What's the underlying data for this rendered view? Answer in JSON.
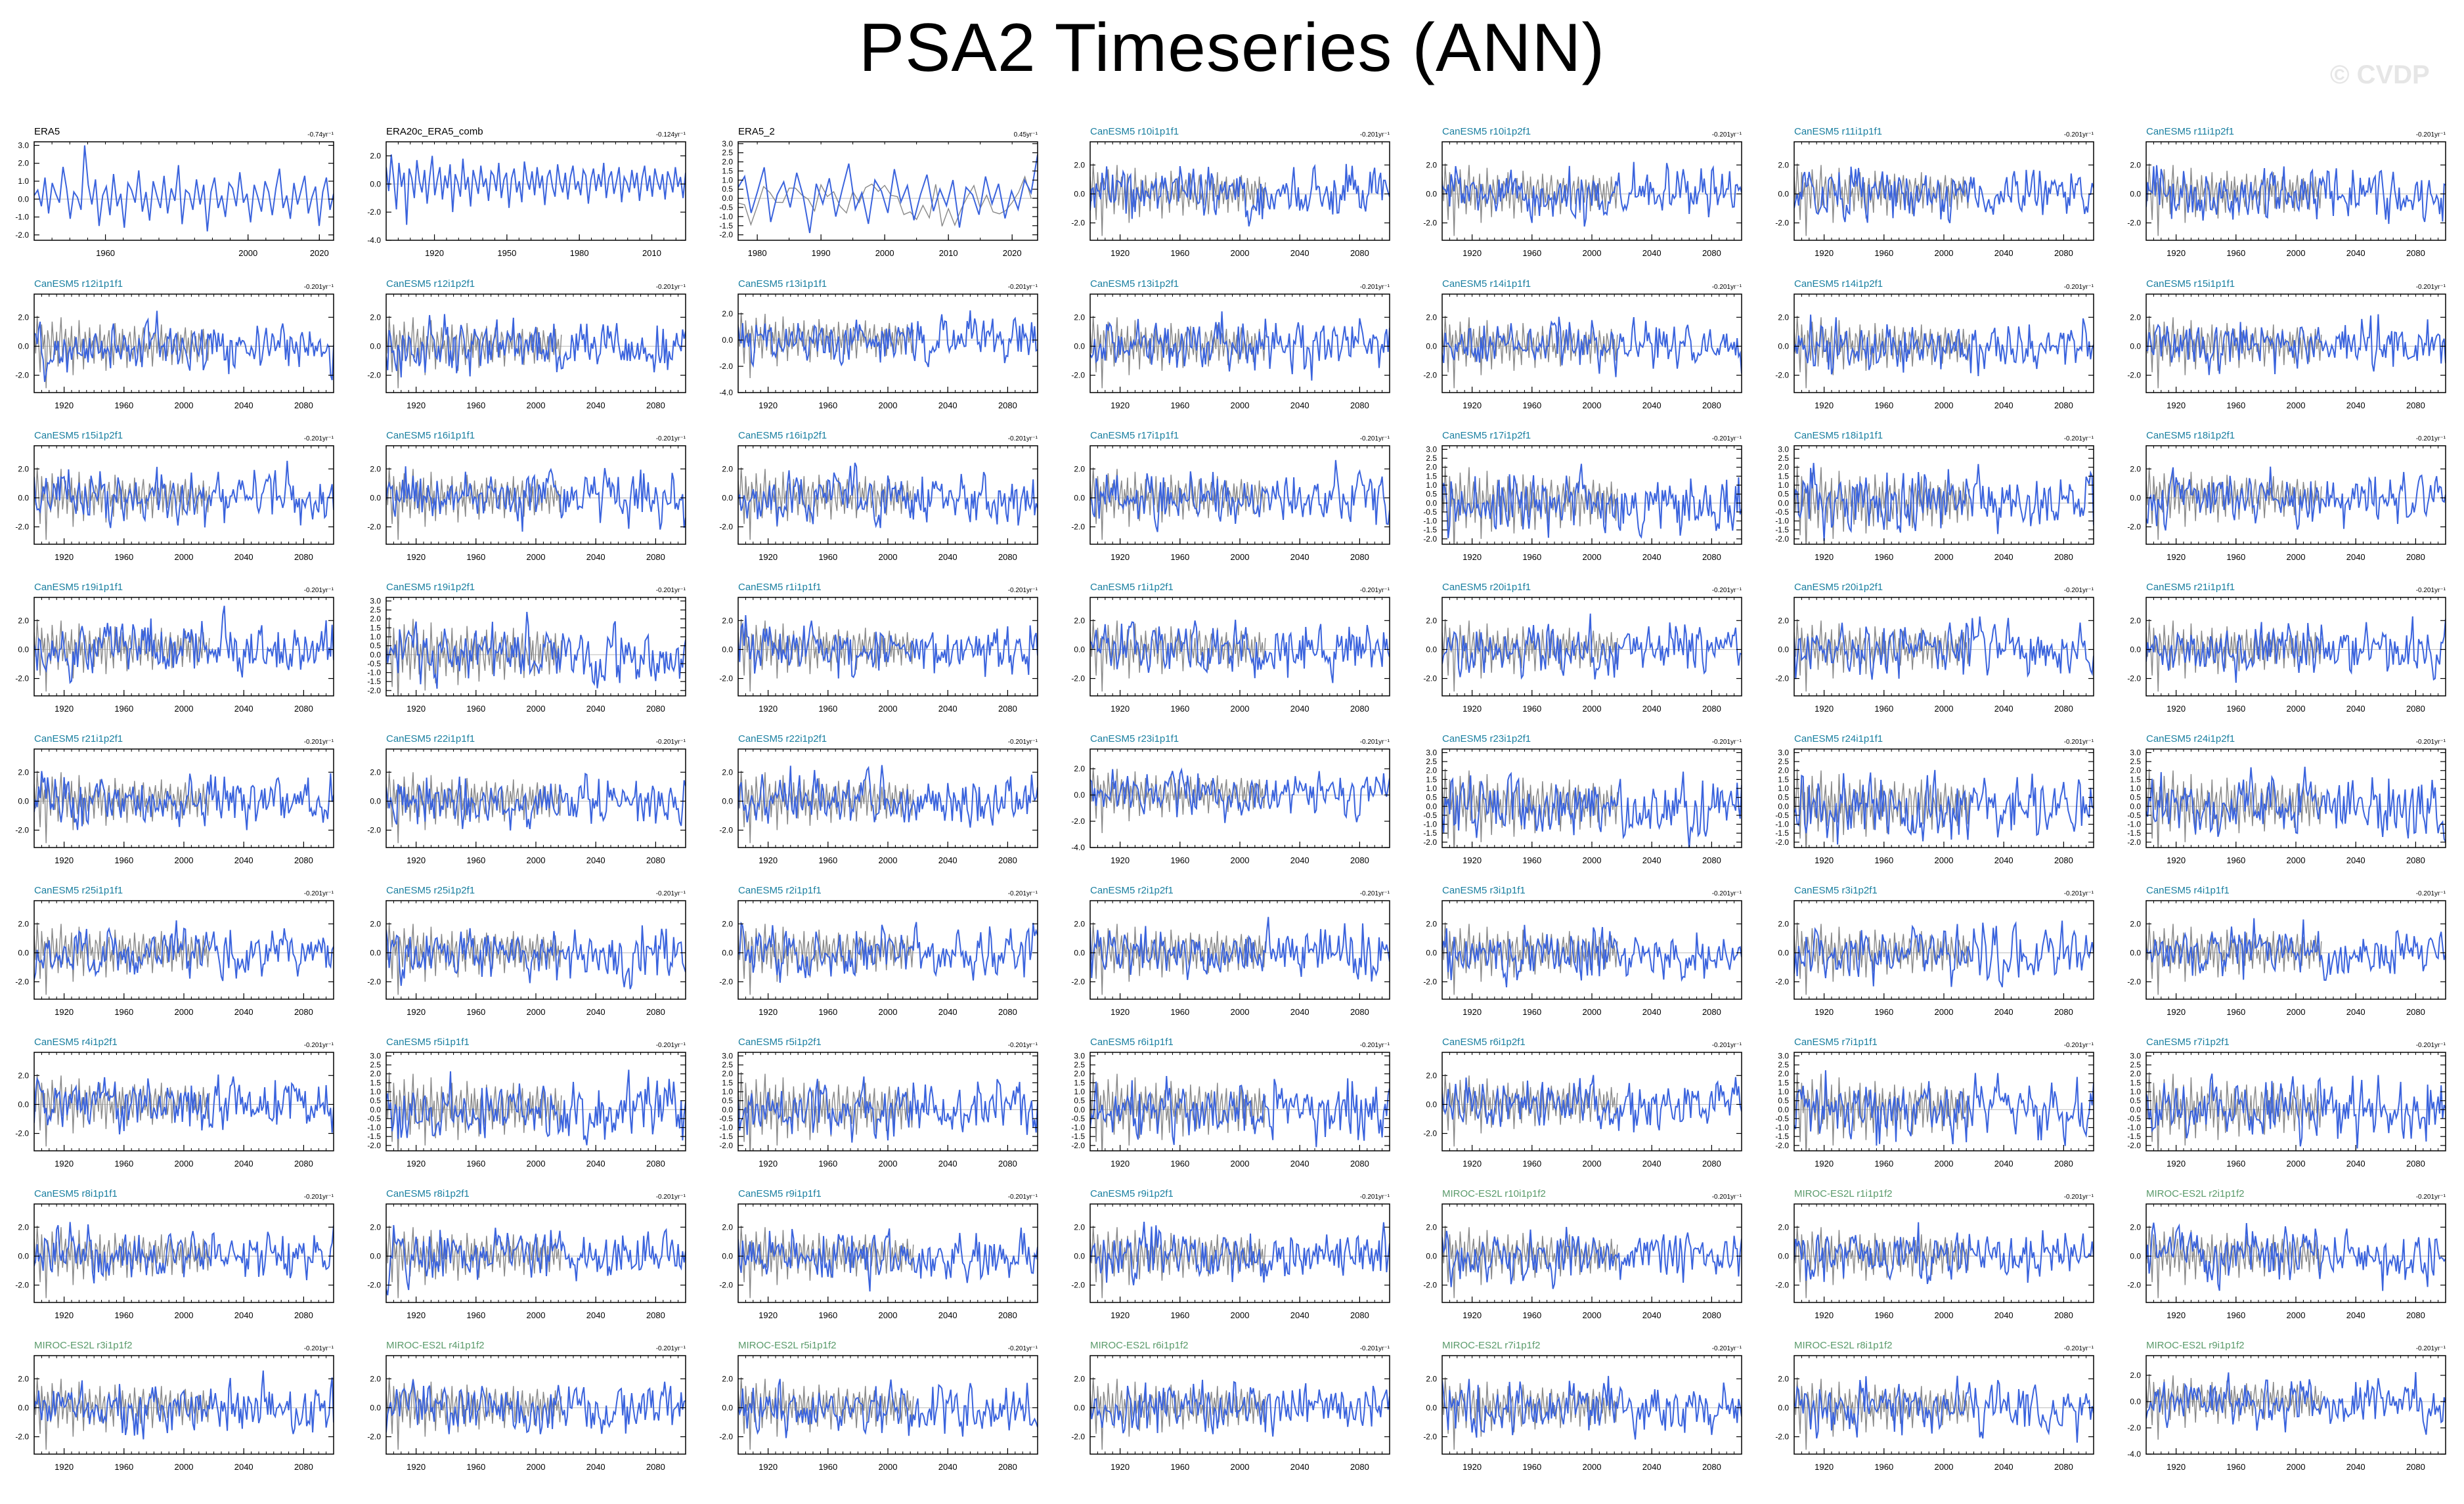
{
  "title": "PSA2 Timeseries (ANN)",
  "watermark": "© CVDP",
  "colors": {
    "model_line": "#3a63dd",
    "obs_line": "#888888",
    "obs_name": "#000000",
    "canesm_name": "#1a7fa0",
    "miroc_name": "#5a9a6a"
  },
  "chart_data": [
    {
      "type": "line",
      "title": "ERA5",
      "group": "obs",
      "trend": "-0.74yr⁻¹",
      "x_ticks": [
        1960,
        2000,
        2020
      ],
      "xlim": [
        1940,
        2024
      ],
      "y_ticks": [
        -2.0,
        -1.0,
        0.0,
        1.0,
        2.0,
        3.0
      ],
      "ylim": [
        -2.3,
        3.2
      ],
      "grid": false,
      "series": [
        {
          "values": [
            0.2,
            0.5,
            -0.4,
            1.2,
            -0.8,
            0.9,
            0.3,
            -0.2,
            1.8,
            0.6,
            -1.1,
            0.4,
            0.1,
            -0.6,
            3.0,
            0.8,
            -0.3,
            1.1,
            -1.5,
            0.2,
            0.7,
            -0.9,
            1.4,
            -0.4,
            0.3,
            -1.6,
            0.9,
            0.5,
            -0.2,
            1.6,
            -0.7,
            0.4,
            -1.2,
            1.0,
            0.2,
            -0.5,
            1.3,
            -0.8,
            0.6,
            -0.1,
            1.9,
            -1.4,
            0.5,
            0.3,
            -0.6,
            1.1,
            -0.3,
            0.8,
            -1.8,
            0.4,
            1.2,
            -0.5,
            0.2,
            -1.0,
            0.9,
            0.6,
            -0.4,
            1.5,
            -0.2,
            0.3,
            -1.3,
            0.8,
            0.1,
            -0.7,
            1.0,
            0.4,
            -0.9,
            0.6,
            1.7,
            -0.5,
            0.2,
            -1.1,
            0.9,
            -0.3,
            0.5,
            1.3,
            -0.8,
            0.1,
            0.7,
            -1.5,
            0.4,
            1.2,
            -0.6,
            0.3
          ]
        }
      ]
    },
    {
      "type": "line",
      "title": "ERA20c_ERA5_comb",
      "group": "obs",
      "trend": "-0.124yr⁻¹",
      "x_ticks": [
        1920,
        1950,
        1980,
        2010
      ],
      "xlim": [
        1900,
        2024
      ],
      "y_ticks": [
        -4.0,
        -2.0,
        0.0,
        2.0
      ],
      "ylim": [
        -4.0,
        3.0
      ],
      "grid": false,
      "series": [
        {
          "values": [
            1.2,
            -0.5,
            2.1,
            0.3,
            -1.8,
            1.5,
            -0.2,
            0.8,
            -2.9,
            1.1,
            0.4,
            -1.0,
            1.7,
            0.2,
            -0.6,
            1.0,
            -1.4,
            0.5,
            2.0,
            -0.8,
            0.3,
            1.2,
            -1.1,
            0.6,
            -0.3,
            1.4,
            -2.0,
            0.7,
            0.1,
            -0.9,
            1.8,
            -0.4,
            0.5,
            -1.6,
            1.0,
            0.2,
            -0.7,
            1.3,
            -0.2,
            0.4,
            -1.2,
            0.9,
            0.6,
            -0.5,
            1.5,
            -1.0,
            0.3,
            0.8,
            -1.7,
            0.4,
            1.1,
            -0.6,
            0.2,
            -1.3,
            1.6,
            0.3,
            -0.4,
            0.9,
            -0.8,
            1.2,
            -0.3,
            0.6,
            -1.5,
            0.5,
            1.0,
            -0.2,
            -0.9,
            1.4,
            0.1,
            -0.6,
            0.8,
            -1.1,
            0.5,
            1.3,
            -0.4,
            0.2,
            -0.8,
            1.0,
            0.6,
            -1.4,
            0.3,
            1.1,
            -0.5,
            0.7,
            -0.2,
            1.5,
            -1.0,
            0.4,
            0.9,
            -0.7,
            0.2,
            1.2,
            -1.3,
            0.5,
            0.1,
            -0.6,
            1.0,
            -0.3,
            0.8,
            -1.2,
            0.4,
            1.3,
            -0.5,
            0.6,
            -0.9,
            1.1,
            0.2,
            -0.4,
            0.7,
            -1.1,
            0.9,
            0.3,
            -0.6,
            1.2,
            -0.2,
            0.5,
            -1.0,
            0.8
          ]
        }
      ]
    },
    {
      "type": "line",
      "title": "ERA5_2",
      "group": "obs",
      "trend": "0.45yr⁻¹",
      "x_ticks": [
        1980,
        1990,
        2000,
        2010,
        2020
      ],
      "xlim": [
        1977,
        2024
      ],
      "y_ticks": [
        -2.0,
        -1.5,
        -1.0,
        -0.5,
        0.0,
        0.5,
        1.0,
        1.5,
        2.0,
        2.5,
        3.0
      ],
      "ylim": [
        -2.3,
        3.1
      ],
      "grid": false,
      "series": [
        {
          "values": [
            0.6,
            1.2,
            -0.8,
            0.4,
            1.7,
            -1.3,
            0.2,
            0.9,
            -0.5,
            1.4,
            0.1,
            -1.9,
            0.8,
            -0.3,
            1.1,
            -1.0,
            0.5,
            1.9,
            -0.6,
            0.3,
            -1.4,
            1.0,
            0.4,
            -0.8,
            1.6,
            -0.2,
            0.7,
            -1.2,
            0.2,
            1.3,
            -0.7,
            0.5,
            -0.4,
            1.0,
            -1.6,
            0.6,
            0.2,
            -0.9,
            1.2,
            -0.3,
            0.8,
            -1.1,
            0.4,
            -0.6,
            1.0,
            0.3,
            2.4
          ]
        }
      ]
    },
    {
      "type": "line",
      "title": "CanESM5 r10i1p1f1",
      "group": "canesm",
      "trend": "-0.201yr⁻¹"
    },
    {
      "type": "line",
      "title": "CanESM5 r10i1p2f1",
      "group": "canesm",
      "trend": "-0.201yr⁻¹"
    },
    {
      "type": "line",
      "title": "CanESM5 r11i1p1f1",
      "group": "canesm",
      "trend": "-0.201yr⁻¹"
    },
    {
      "type": "line",
      "title": "CanESM5 r11i1p2f1",
      "group": "canesm",
      "trend": "-0.201yr⁻¹"
    },
    {
      "type": "line",
      "title": "CanESM5 r12i1p1f1",
      "group": "canesm",
      "trend": "-0.201yr⁻¹"
    },
    {
      "type": "line",
      "title": "CanESM5 r12i1p2f1",
      "group": "canesm",
      "trend": "-0.201yr⁻¹"
    },
    {
      "type": "line",
      "title": "CanESM5 r13i1p1f1",
      "group": "canesm",
      "trend": "-0.201yr⁻¹",
      "y_ticks": [
        -4.0,
        -2.0,
        0.0,
        2.0
      ],
      "ylim": [
        -4.0,
        3.5
      ]
    },
    {
      "type": "line",
      "title": "CanESM5 r13i1p2f1",
      "group": "canesm",
      "trend": "-0.201yr⁻¹"
    },
    {
      "type": "line",
      "title": "CanESM5 r14i1p1f1",
      "group": "canesm",
      "trend": "-0.201yr⁻¹"
    },
    {
      "type": "line",
      "title": "CanESM5 r14i1p2f1",
      "group": "canesm",
      "trend": "-0.201yr⁻¹"
    },
    {
      "type": "line",
      "title": "CanESM5 r15i1p1f1",
      "group": "canesm",
      "trend": "-0.201yr⁻¹"
    },
    {
      "type": "line",
      "title": "CanESM5 r15i1p2f1",
      "group": "canesm",
      "trend": "-0.201yr⁻¹"
    },
    {
      "type": "line",
      "title": "CanESM5 r16i1p1f1",
      "group": "canesm",
      "trend": "-0.201yr⁻¹"
    },
    {
      "type": "line",
      "title": "CanESM5 r16i1p2f1",
      "group": "canesm",
      "trend": "-0.201yr⁻¹"
    },
    {
      "type": "line",
      "title": "CanESM5 r17i1p1f1",
      "group": "canesm",
      "trend": "-0.201yr⁻¹"
    },
    {
      "type": "line",
      "title": "CanESM5 r17i1p2f1",
      "group": "canesm",
      "trend": "-0.201yr⁻¹",
      "y_ticks": [
        -2.0,
        -1.5,
        -1.0,
        -0.5,
        0.0,
        0.5,
        1.0,
        1.5,
        2.0,
        2.5,
        3.0
      ],
      "ylim": [
        -2.3,
        3.2
      ]
    },
    {
      "type": "line",
      "title": "CanESM5 r18i1p1f1",
      "group": "canesm",
      "trend": "-0.201yr⁻¹",
      "y_ticks": [
        -2.0,
        -1.5,
        -1.0,
        -0.5,
        0.0,
        0.5,
        1.0,
        1.5,
        2.0,
        2.5,
        3.0
      ],
      "ylim": [
        -2.3,
        3.2
      ]
    },
    {
      "type": "line",
      "title": "CanESM5 r18i1p2f1",
      "group": "canesm",
      "trend": "-0.201yr⁻¹"
    },
    {
      "type": "line",
      "title": "CanESM5 r19i1p1f1",
      "group": "canesm",
      "trend": "-0.201yr⁻¹"
    },
    {
      "type": "line",
      "title": "CanESM5 r19i1p2f1",
      "group": "canesm",
      "trend": "-0.201yr⁻¹",
      "y_ticks": [
        -2.0,
        -1.5,
        -1.0,
        -0.5,
        0.0,
        0.5,
        1.0,
        1.5,
        2.0,
        2.5,
        3.0
      ],
      "ylim": [
        -2.3,
        3.2
      ]
    },
    {
      "type": "line",
      "title": "CanESM5 r1i1p1f1",
      "group": "canesm",
      "trend": "-0.201yr⁻¹"
    },
    {
      "type": "line",
      "title": "CanESM5 r1i1p2f1",
      "group": "canesm",
      "trend": "-0.201yr⁻¹"
    },
    {
      "type": "line",
      "title": "CanESM5 r20i1p1f1",
      "group": "canesm",
      "trend": "-0.201yr⁻¹"
    },
    {
      "type": "line",
      "title": "CanESM5 r20i1p2f1",
      "group": "canesm",
      "trend": "-0.201yr⁻¹"
    },
    {
      "type": "line",
      "title": "CanESM5 r21i1p1f1",
      "group": "canesm",
      "trend": "-0.201yr⁻¹"
    },
    {
      "type": "line",
      "title": "CanESM5 r21i1p2f1",
      "group": "canesm",
      "trend": "-0.201yr⁻¹"
    },
    {
      "type": "line",
      "title": "CanESM5 r22i1p1f1",
      "group": "canesm",
      "trend": "-0.201yr⁻¹"
    },
    {
      "type": "line",
      "title": "CanESM5 r22i1p2f1",
      "group": "canesm",
      "trend": "-0.201yr⁻¹"
    },
    {
      "type": "line",
      "title": "CanESM5 r23i1p1f1",
      "group": "canesm",
      "trend": "-0.201yr⁻¹",
      "y_ticks": [
        -4.0,
        -2.0,
        0.0,
        2.0
      ],
      "ylim": [
        -4.0,
        3.5
      ]
    },
    {
      "type": "line",
      "title": "CanESM5 r23i1p2f1",
      "group": "canesm",
      "trend": "-0.201yr⁻¹",
      "y_ticks": [
        -2.0,
        -1.5,
        -1.0,
        -0.5,
        0.0,
        0.5,
        1.0,
        1.5,
        2.0,
        2.5,
        3.0
      ],
      "ylim": [
        -2.3,
        3.2
      ]
    },
    {
      "type": "line",
      "title": "CanESM5 r24i1p1f1",
      "group": "canesm",
      "trend": "-0.201yr⁻¹",
      "y_ticks": [
        -2.0,
        -1.5,
        -1.0,
        -0.5,
        0.0,
        0.5,
        1.0,
        1.5,
        2.0,
        2.5,
        3.0
      ],
      "ylim": [
        -2.3,
        3.2
      ]
    },
    {
      "type": "line",
      "title": "CanESM5 r24i1p2f1",
      "group": "canesm",
      "trend": "-0.201yr⁻¹",
      "y_ticks": [
        -2.0,
        -1.5,
        -1.0,
        -0.5,
        0.0,
        0.5,
        1.0,
        1.5,
        2.0,
        2.5,
        3.0
      ],
      "ylim": [
        -2.3,
        3.2
      ]
    },
    {
      "type": "line",
      "title": "CanESM5 r25i1p1f1",
      "group": "canesm",
      "trend": "-0.201yr⁻¹"
    },
    {
      "type": "line",
      "title": "CanESM5 r25i1p2f1",
      "group": "canesm",
      "trend": "-0.201yr⁻¹"
    },
    {
      "type": "line",
      "title": "CanESM5 r2i1p1f1",
      "group": "canesm",
      "trend": "-0.201yr⁻¹"
    },
    {
      "type": "line",
      "title": "CanESM5 r2i1p2f1",
      "group": "canesm",
      "trend": "-0.201yr⁻¹"
    },
    {
      "type": "line",
      "title": "CanESM5 r3i1p1f1",
      "group": "canesm",
      "trend": "-0.201yr⁻¹"
    },
    {
      "type": "line",
      "title": "CanESM5 r3i1p2f1",
      "group": "canesm",
      "trend": "-0.201yr⁻¹"
    },
    {
      "type": "line",
      "title": "CanESM5 r4i1p1f1",
      "group": "canesm",
      "trend": "-0.201yr⁻¹"
    },
    {
      "type": "line",
      "title": "CanESM5 r4i1p2f1",
      "group": "canesm",
      "trend": "-0.201yr⁻¹"
    },
    {
      "type": "line",
      "title": "CanESM5 r5i1p1f1",
      "group": "canesm",
      "trend": "-0.201yr⁻¹",
      "y_ticks": [
        -2.0,
        -1.5,
        -1.0,
        -0.5,
        0.0,
        0.5,
        1.0,
        1.5,
        2.0,
        2.5,
        3.0
      ],
      "ylim": [
        -2.3,
        3.2
      ]
    },
    {
      "type": "line",
      "title": "CanESM5 r5i1p2f1",
      "group": "canesm",
      "trend": "-0.201yr⁻¹",
      "y_ticks": [
        -2.0,
        -1.5,
        -1.0,
        -0.5,
        0.0,
        0.5,
        1.0,
        1.5,
        2.0,
        2.5,
        3.0
      ],
      "ylim": [
        -2.3,
        3.2
      ]
    },
    {
      "type": "line",
      "title": "CanESM5 r6i1p1f1",
      "group": "canesm",
      "trend": "-0.201yr⁻¹",
      "y_ticks": [
        -2.0,
        -1.5,
        -1.0,
        -0.5,
        0.0,
        0.5,
        1.0,
        1.5,
        2.0,
        2.5,
        3.0
      ],
      "ylim": [
        -2.3,
        3.2
      ]
    },
    {
      "type": "line",
      "title": "CanESM5 r6i1p2f1",
      "group": "canesm",
      "trend": "-0.201yr⁻¹"
    },
    {
      "type": "line",
      "title": "CanESM5 r7i1p1f1",
      "group": "canesm",
      "trend": "-0.201yr⁻¹",
      "y_ticks": [
        -2.0,
        -1.5,
        -1.0,
        -0.5,
        0.0,
        0.5,
        1.0,
        1.5,
        2.0,
        2.5,
        3.0
      ],
      "ylim": [
        -2.3,
        3.2
      ]
    },
    {
      "type": "line",
      "title": "CanESM5 r7i1p2f1",
      "group": "canesm",
      "trend": "-0.201yr⁻¹",
      "y_ticks": [
        -2.0,
        -1.5,
        -1.0,
        -0.5,
        0.0,
        0.5,
        1.0,
        1.5,
        2.0,
        2.5,
        3.0
      ],
      "ylim": [
        -2.3,
        3.2
      ]
    },
    {
      "type": "line",
      "title": "CanESM5 r8i1p1f1",
      "group": "canesm",
      "trend": "-0.201yr⁻¹"
    },
    {
      "type": "line",
      "title": "CanESM5 r8i1p2f1",
      "group": "canesm",
      "trend": "-0.201yr⁻¹"
    },
    {
      "type": "line",
      "title": "CanESM5 r9i1p1f1",
      "group": "canesm",
      "trend": "-0.201yr⁻¹"
    },
    {
      "type": "line",
      "title": "CanESM5 r9i1p2f1",
      "group": "canesm",
      "trend": "-0.201yr⁻¹"
    },
    {
      "type": "line",
      "title": "MIROC-ES2L r10i1p1f2",
      "group": "miroc",
      "trend": "-0.201yr⁻¹"
    },
    {
      "type": "line",
      "title": "MIROC-ES2L r1i1p1f2",
      "group": "miroc",
      "trend": "-0.201yr⁻¹"
    },
    {
      "type": "line",
      "title": "MIROC-ES2L r2i1p1f2",
      "group": "miroc",
      "trend": "-0.201yr⁻¹"
    },
    {
      "type": "line",
      "title": "MIROC-ES2L r3i1p1f2",
      "group": "miroc",
      "trend": "-0.201yr⁻¹"
    },
    {
      "type": "line",
      "title": "MIROC-ES2L r4i1p1f2",
      "group": "miroc",
      "trend": "-0.201yr⁻¹"
    },
    {
      "type": "line",
      "title": "MIROC-ES2L r5i1p1f2",
      "group": "miroc",
      "trend": "-0.201yr⁻¹"
    },
    {
      "type": "line",
      "title": "MIROC-ES2L r6i1p1f2",
      "group": "miroc",
      "trend": "-0.201yr⁻¹"
    },
    {
      "type": "line",
      "title": "MIROC-ES2L r7i1p1f2",
      "group": "miroc",
      "trend": "-0.201yr⁻¹"
    },
    {
      "type": "line",
      "title": "MIROC-ES2L r8i1p1f2",
      "group": "miroc",
      "trend": "-0.201yr⁻¹"
    },
    {
      "type": "line",
      "title": "MIROC-ES2L r9i1p1f2",
      "group": "miroc",
      "trend": "-0.201yr⁻¹",
      "y_ticks": [
        -4.0,
        -2.0,
        0.0,
        2.0
      ],
      "ylim": [
        -4.0,
        3.5
      ]
    }
  ],
  "model_defaults": {
    "x_ticks": [
      1920,
      1960,
      2000,
      2040,
      2080
    ],
    "xlim": [
      1900,
      2100
    ],
    "y_ticks": [
      -2.0,
      0.0,
      2.0
    ],
    "ylim": [
      -3.2,
      3.6
    ],
    "grid": false,
    "obs_overlay": "ERA20c_ERA5_comb"
  }
}
